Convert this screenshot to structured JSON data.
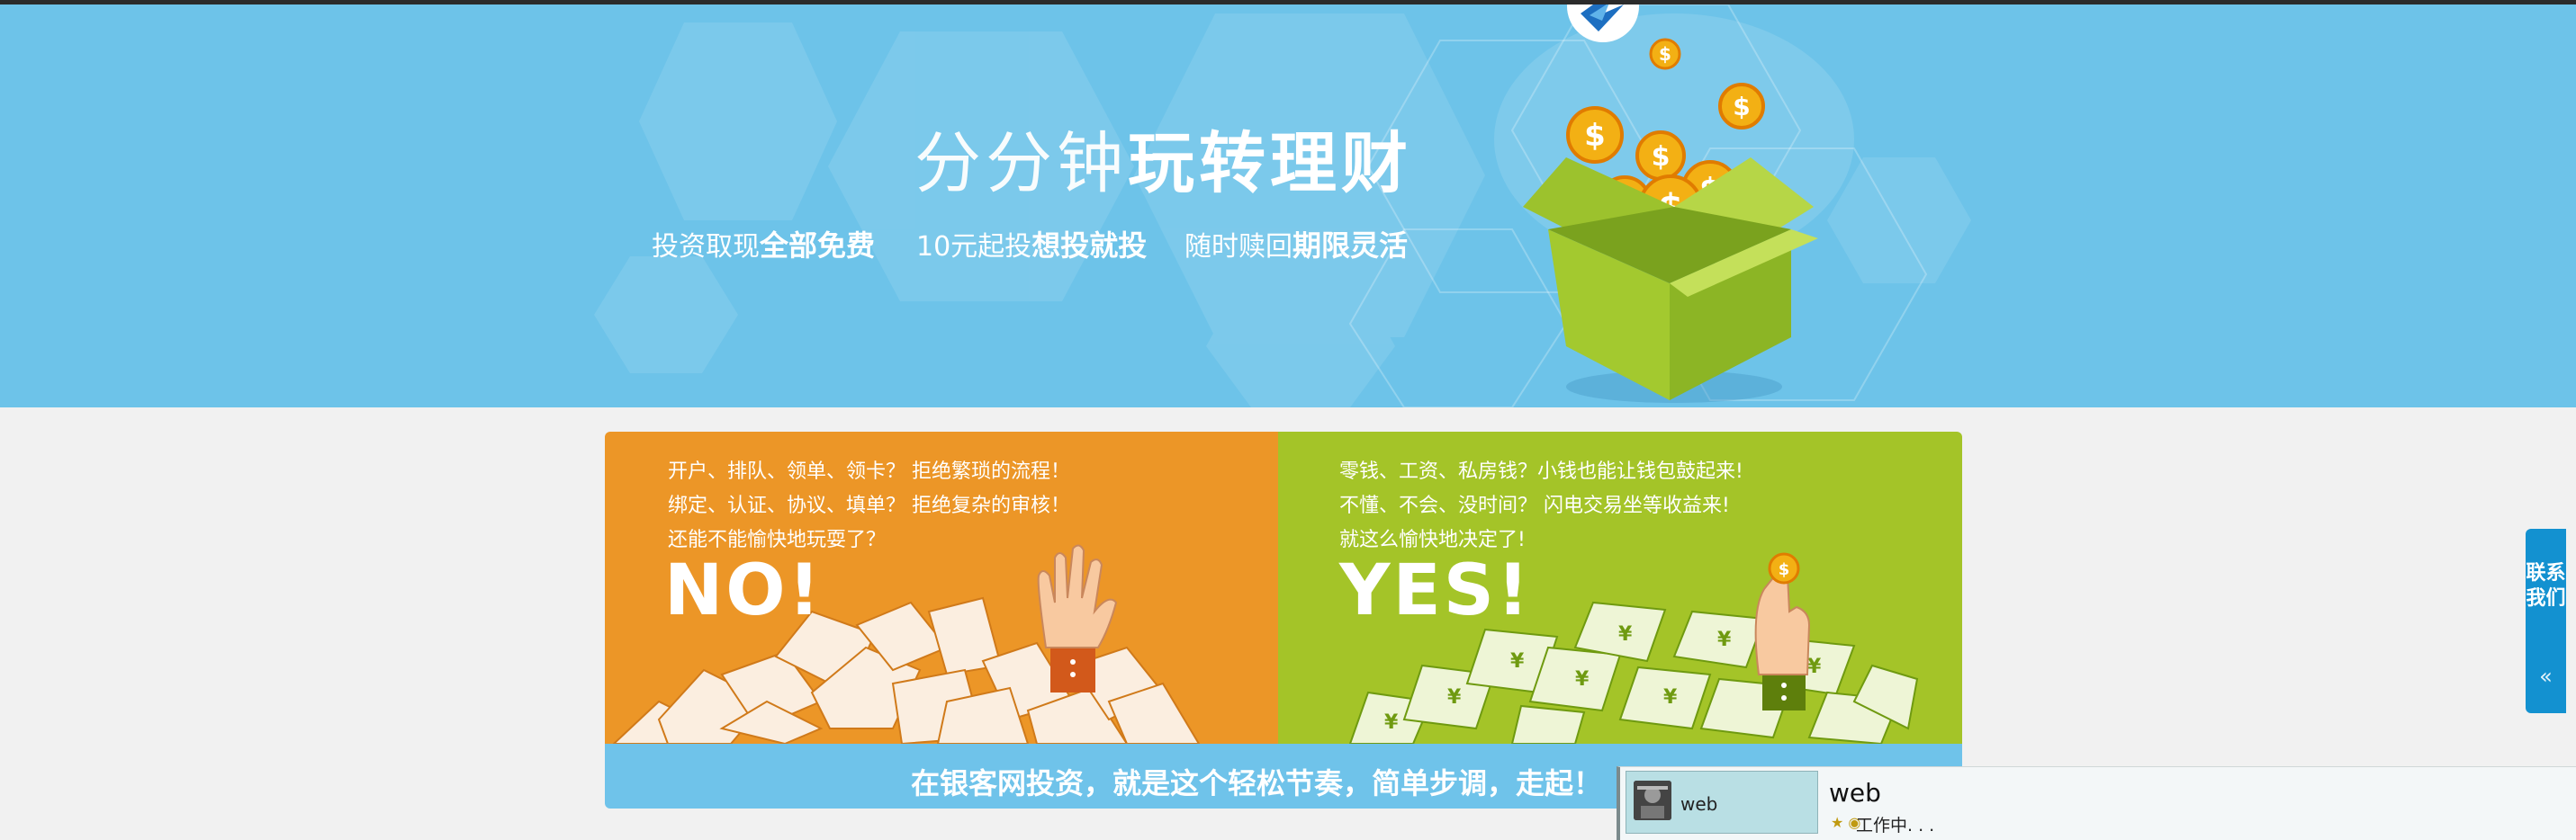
{
  "hero": {
    "title_light": "分分钟",
    "title_bold": "玩转理财",
    "sub1_a": "投资取现",
    "sub1_b": "全部免费",
    "sub2_a": "10元起投",
    "sub2_b": "想投就投",
    "sub3_a": "随时赎回",
    "sub3_b": "期限灵活",
    "coin_symbol": "$"
  },
  "left_panel": {
    "line1": "开户、排队、领单、领卡？ 拒绝繁琐的流程！",
    "line2": "绑定、认证、协议、填单？ 拒绝复杂的审核！",
    "line3": "还能不能愉快地玩耍了？",
    "big": "NO!"
  },
  "right_panel": {
    "line1": "零钱、工资、私房钱？小钱也能让钱包鼓起来!",
    "line2": "不懂、不会、没时间？ 闪电交易坐等收益来!",
    "line3": "就这么愉快地决定了!",
    "big": "YES!",
    "money_symbol": "¥"
  },
  "bottom_strip": {
    "text": "在银客网投资，就是这个轻松节奏，简单步调，走起！"
  },
  "side_contact": {
    "label": "联系我们",
    "arrow": "«"
  },
  "taskbar": {
    "item_label": "web",
    "title": "web",
    "status": "工作中. . ."
  },
  "colors": {
    "hero_bg": "#6dc3e9",
    "left_panel": "#ec9627",
    "right_panel": "#a4c428",
    "strip": "#6fc3ea",
    "side_contact": "#1391d0"
  }
}
